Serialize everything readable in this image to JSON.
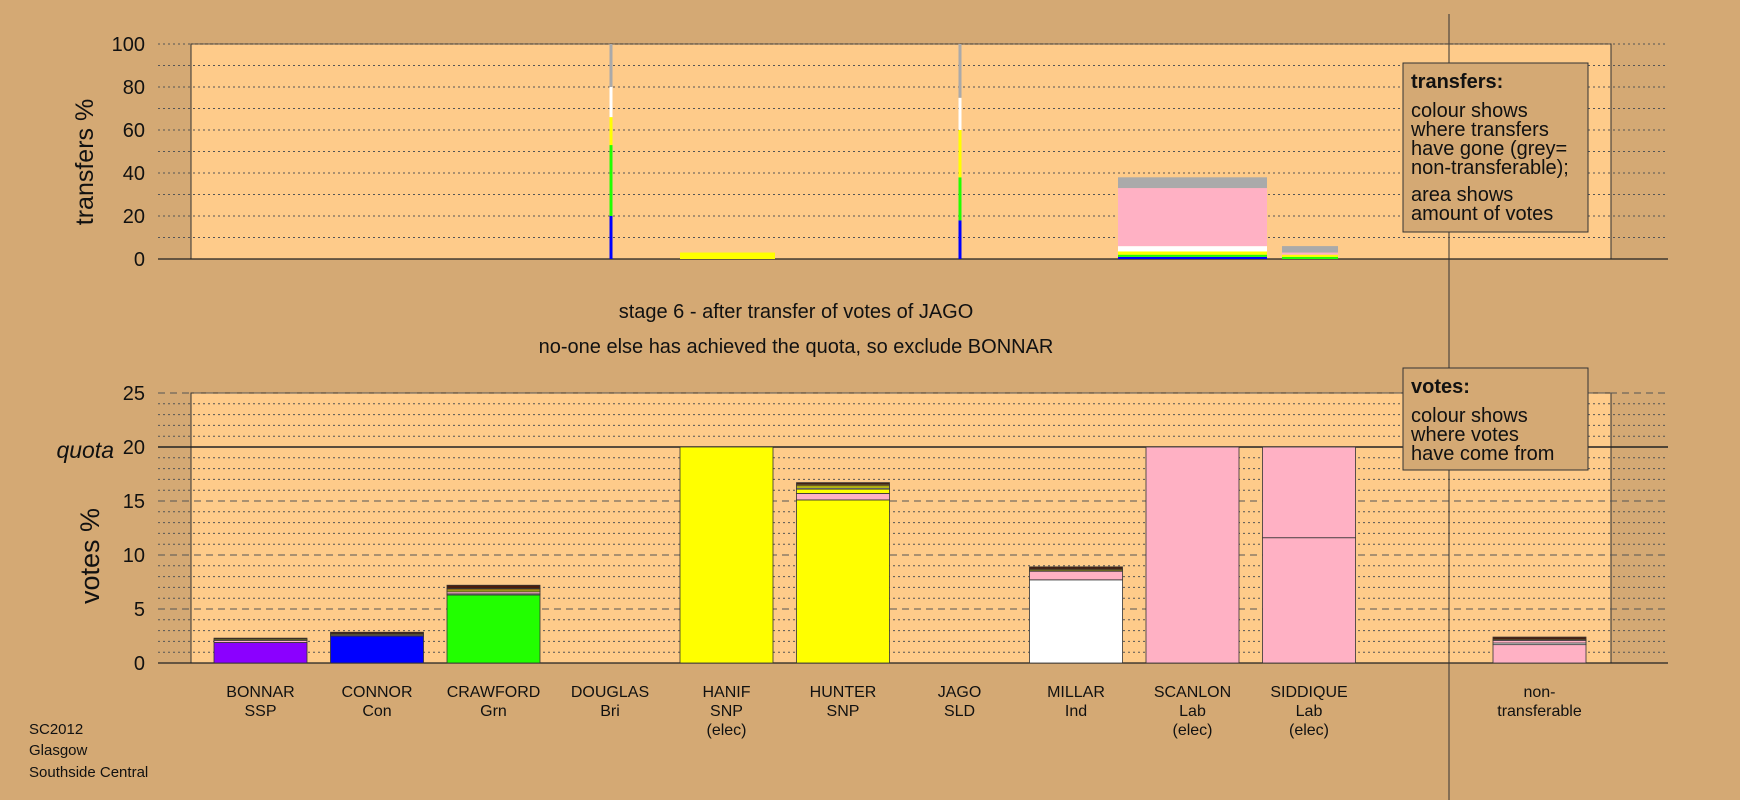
{
  "colors": {
    "background": "#d4a974",
    "plot_area": "#fecb8a",
    "box": "#d4a974",
    "grid": "#555555",
    "party": {
      "SSP": "#8b00ff",
      "Con": "#0000ff",
      "Grn": "#22ff00",
      "SNP": "#ffff00",
      "Ind": "#ffffff",
      "Lab": "#ffb1c4",
      "Bri": "#4a1c0c",
      "SLD": "#b8860b",
      "nontransferable": "#aaaaaa"
    }
  },
  "stage_title": "stage 6 - after transfer of votes of JAGO",
  "stage_subtitle": "no-one else has achieved the quota, so exclude BONNAR",
  "footer": [
    "SC2012",
    "Glasgow",
    "Southside Central"
  ],
  "chart_data": [
    {
      "type": "bar",
      "name": "transfers",
      "ylabel": "transfers %",
      "ylim": [
        0,
        100
      ],
      "yticks": [
        0,
        20,
        40,
        60,
        80,
        100
      ],
      "legend_box": {
        "title": "transfers:",
        "lines": [
          "colour shows",
          "where transfers",
          "have gone (grey=",
          "non-transferable);",
          "",
          "area shows",
          "amount of votes"
        ]
      },
      "thin_bars": [
        {
          "candidate": "DOUGLAS",
          "segments": [
            {
              "party": "Con",
              "value": 20
            },
            {
              "party": "Grn",
              "value": 33
            },
            {
              "party": "SNP",
              "value": 13
            },
            {
              "party": "Ind",
              "value": 14
            },
            {
              "party": "nontransferable",
              "value": 20
            }
          ]
        },
        {
          "candidate": "JAGO",
          "segments": [
            {
              "party": "Con",
              "value": 18
            },
            {
              "party": "Grn",
              "value": 20
            },
            {
              "party": "SNP",
              "value": 22
            },
            {
              "party": "Ind",
              "value": 15
            },
            {
              "party": "nontransferable",
              "value": 25
            }
          ]
        }
      ],
      "area_blocks": [
        {
          "label": "HANIF surplus",
          "segments": [
            {
              "party": "SNP",
              "value": 3
            }
          ]
        },
        {
          "label": "SCANLON surplus",
          "segments": [
            {
              "party": "Con",
              "value": 1
            },
            {
              "party": "Grn",
              "value": 1
            },
            {
              "party": "SNP",
              "value": 1.5
            },
            {
              "party": "Ind",
              "value": 2.5
            },
            {
              "party": "Lab",
              "value": 27
            },
            {
              "party": "nontransferable",
              "value": 5
            }
          ]
        },
        {
          "label": "SIDDIQUE surplus",
          "segments": [
            {
              "party": "Grn",
              "value": 1
            },
            {
              "party": "SNP",
              "value": 1
            },
            {
              "party": "Lab",
              "value": 1
            },
            {
              "party": "nontransferable",
              "value": 3
            }
          ]
        }
      ]
    },
    {
      "type": "bar",
      "name": "votes",
      "ylabel": "votes %",
      "ylim": [
        0,
        25
      ],
      "yticks": [
        0,
        5,
        10,
        15,
        20,
        25
      ],
      "quota": 20,
      "quota_label": "quota",
      "legend_box": {
        "title": "votes:",
        "lines": [
          "colour shows",
          "where votes",
          "have come from"
        ]
      },
      "candidates": [
        {
          "name": "BONNAR",
          "party": "SSP",
          "elec": "",
          "segments": [
            {
              "party": "SSP",
              "value": 1.9
            },
            {
              "party": "Lab",
              "value": 0.2
            },
            {
              "party": "SNP",
              "value": 0.1
            },
            {
              "party": "Bri",
              "value": 0.1
            }
          ]
        },
        {
          "name": "CONNOR",
          "party": "Con",
          "elec": "",
          "segments": [
            {
              "party": "Con",
              "value": 2.5
            },
            {
              "party": "Lab",
              "value": 0.1
            },
            {
              "party": "SNP",
              "value": 0.1
            },
            {
              "party": "Bri",
              "value": 0.15
            }
          ]
        },
        {
          "name": "CRAWFORD",
          "party": "Grn",
          "elec": "",
          "segments": [
            {
              "party": "Grn",
              "value": 6.3
            },
            {
              "party": "Ind",
              "value": 0.1
            },
            {
              "party": "Lab",
              "value": 0.2
            },
            {
              "party": "SNP",
              "value": 0.15
            },
            {
              "party": "SLD",
              "value": 0.15
            },
            {
              "party": "Bri",
              "value": 0.3
            }
          ]
        },
        {
          "name": "DOUGLAS",
          "party": "Bri",
          "elec": "",
          "segments": []
        },
        {
          "name": "HANIF",
          "party": "SNP",
          "elec": "(elec)",
          "segments": [
            {
              "party": "SNP",
              "value": 20
            }
          ]
        },
        {
          "name": "HUNTER",
          "party": "SNP",
          "elec": "",
          "segments": [
            {
              "party": "SNP",
              "value": 15.1
            },
            {
              "party": "Lab",
              "value": 0.6
            },
            {
              "party": "SNP",
              "value": 0.4
            },
            {
              "party": "Ind",
              "value": 0.1
            },
            {
              "party": "SNP",
              "value": 0.2
            },
            {
              "party": "SLD",
              "value": 0.15
            },
            {
              "party": "Bri",
              "value": 0.15
            }
          ]
        },
        {
          "name": "JAGO",
          "party": "SLD",
          "elec": "",
          "segments": []
        },
        {
          "name": "MILLAR",
          "party": "Ind",
          "elec": "",
          "segments": [
            {
              "party": "Ind",
              "value": 7.7
            },
            {
              "party": "Lab",
              "value": 0.8
            },
            {
              "party": "SNP",
              "value": 0.1
            },
            {
              "party": "SLD",
              "value": 0.1
            },
            {
              "party": "Bri",
              "value": 0.2
            }
          ]
        },
        {
          "name": "SCANLON",
          "party": "Lab",
          "elec": "(elec)",
          "segments": [
            {
              "party": "Lab",
              "value": 20
            }
          ]
        },
        {
          "name": "SIDDIQUE",
          "party": "Lab",
          "elec": "(elec)",
          "segments": [
            {
              "party": "Lab",
              "value": 11.6
            },
            {
              "party": "Lab",
              "value": 8.4
            }
          ]
        },
        {
          "name": "non-",
          "party": "transferable",
          "elec": "",
          "segments": [
            {
              "party": "Lab",
              "value": 1.7
            },
            {
              "party": "Ind",
              "value": 0.15
            },
            {
              "party": "Lab",
              "value": 0.25
            },
            {
              "party": "SLD",
              "value": 0.1
            },
            {
              "party": "Bri",
              "value": 0.2
            }
          ]
        }
      ]
    }
  ]
}
